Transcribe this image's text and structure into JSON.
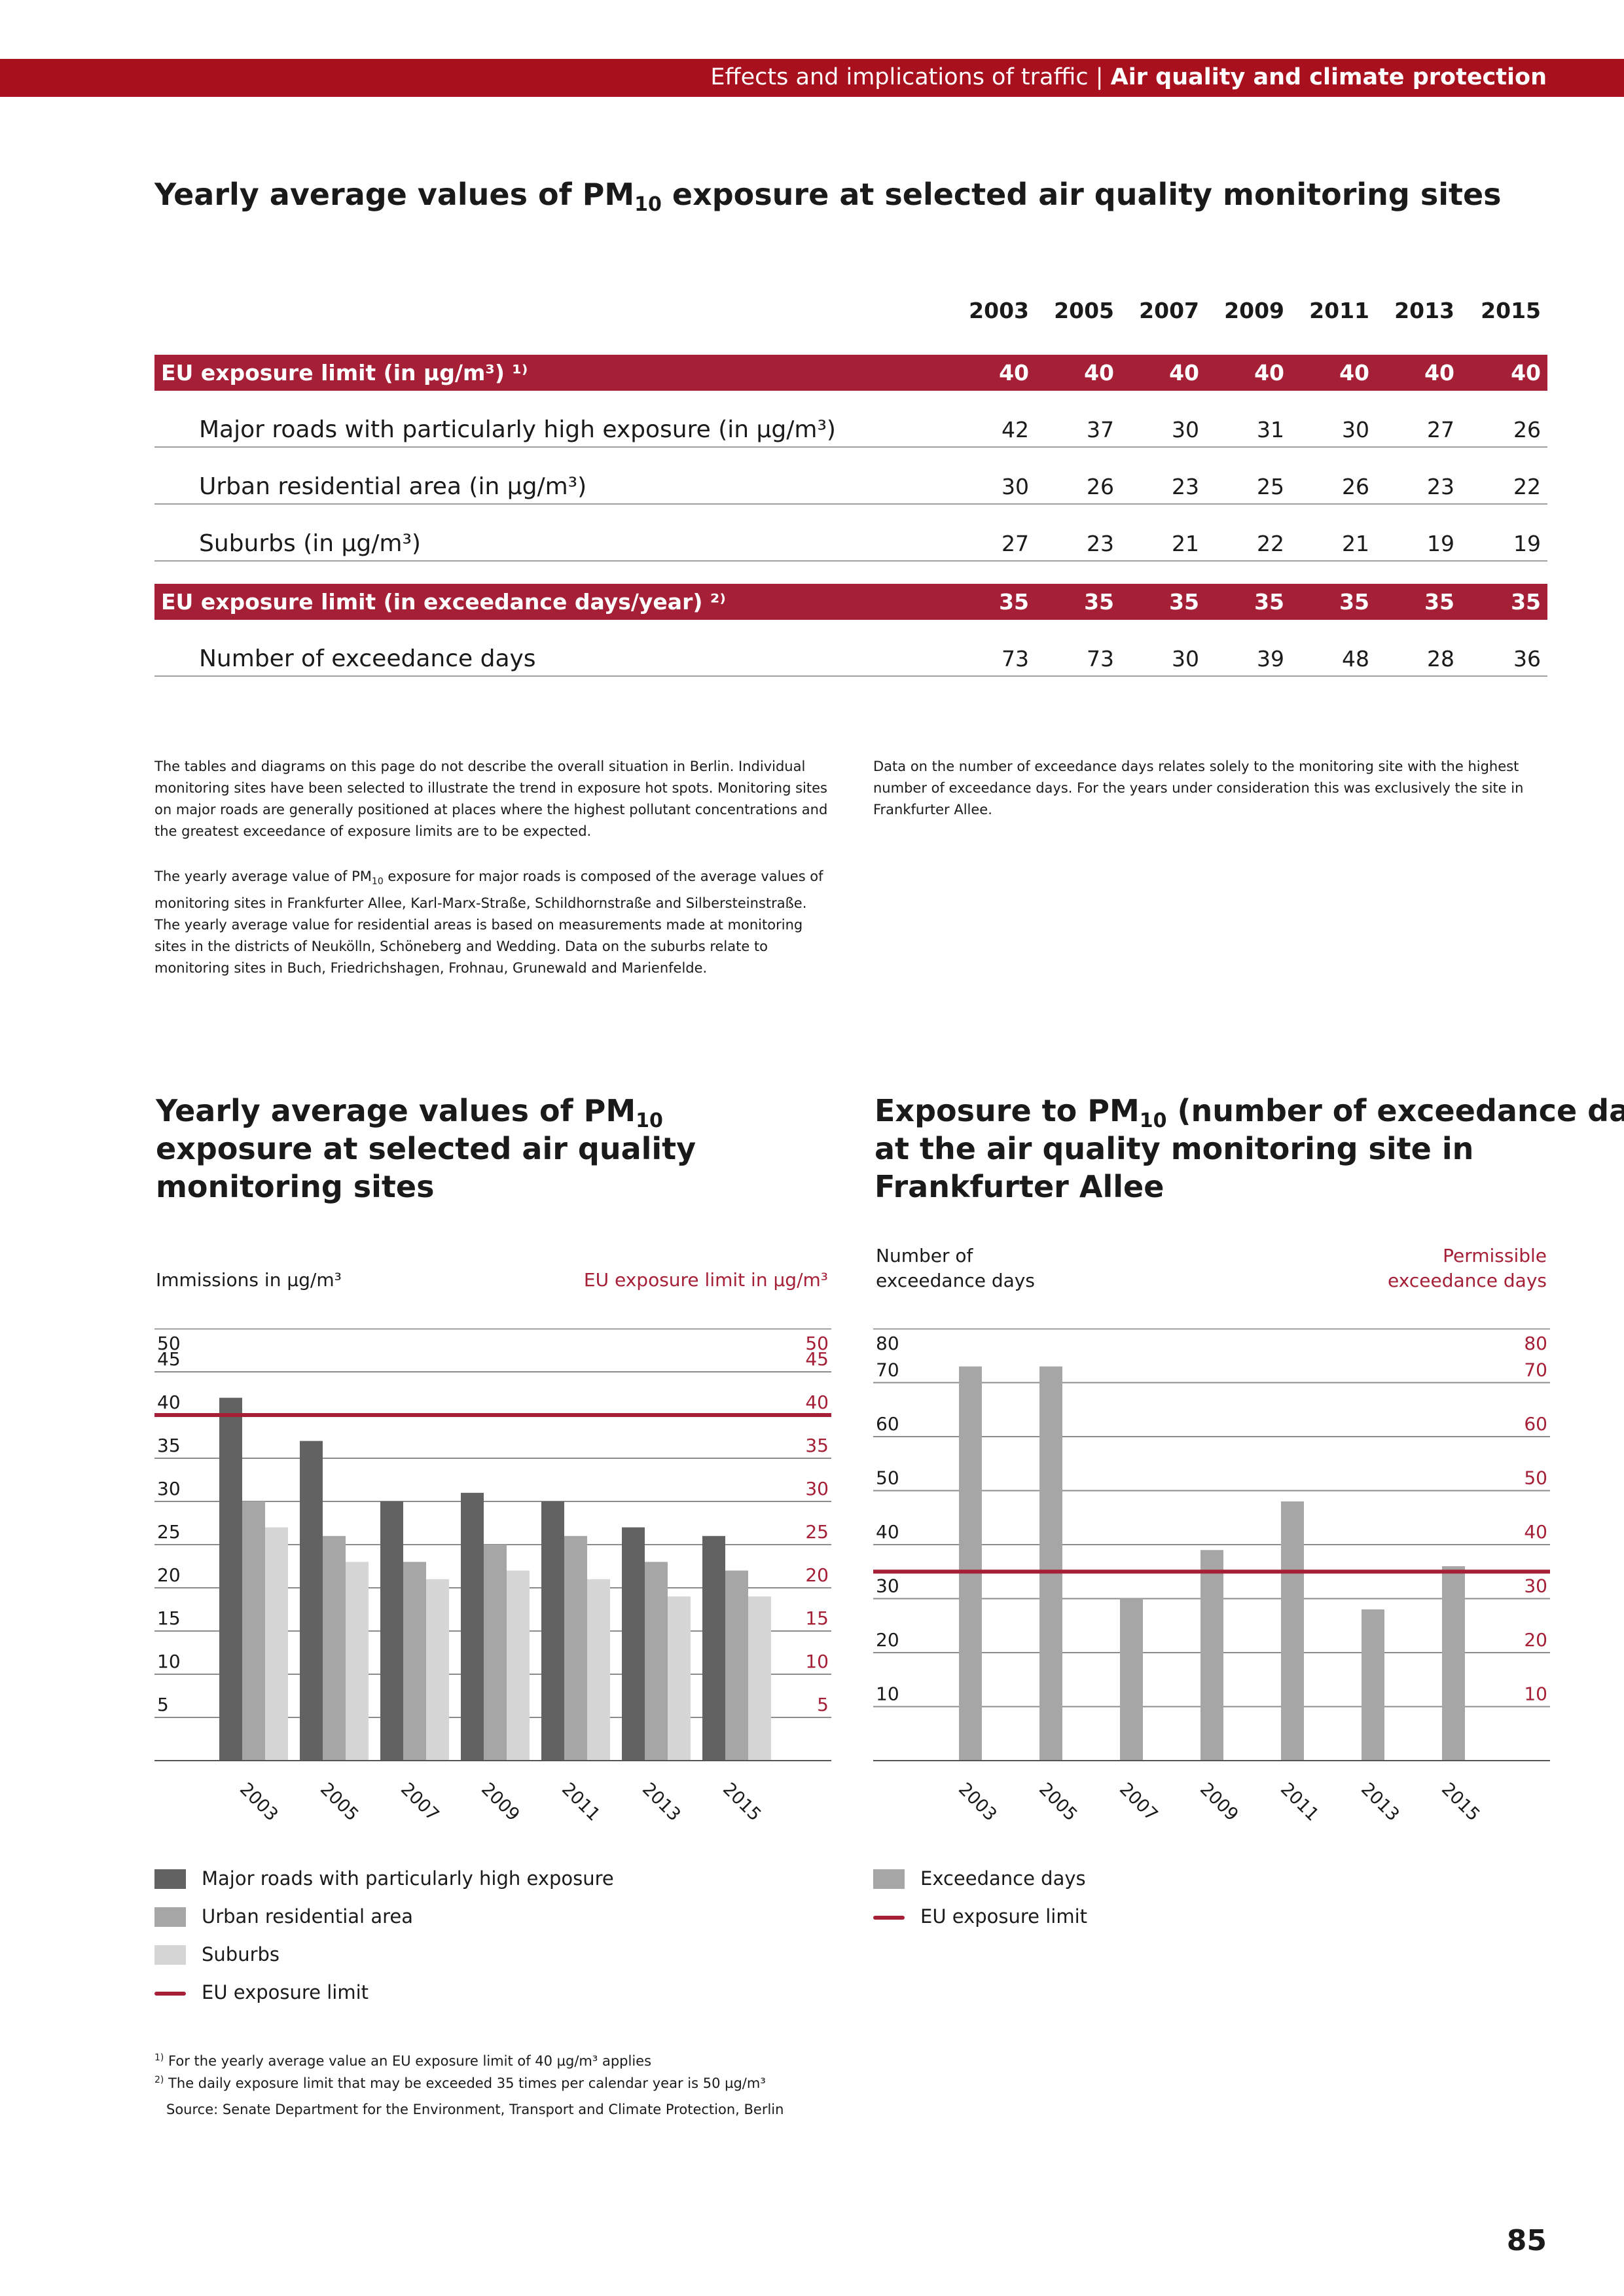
{
  "header": {
    "section": "Effects and implications of traffic",
    "separator": " | ",
    "chapter": "Air quality and climate protection"
  },
  "table_section": {
    "title_pre": "Yearly average values of PM",
    "title_sub": "10",
    "title_post": " exposure at selected air quality monitoring sites",
    "years": [
      "2003",
      "2005",
      "2007",
      "2009",
      "2011",
      "2013",
      "2015"
    ],
    "rows": [
      {
        "label": "EU exposure limit (in µg/m³) ¹⁾",
        "style": "red",
        "values": [
          "40",
          "40",
          "40",
          "40",
          "40",
          "40",
          "40"
        ]
      },
      {
        "label": "Major roads with particularly high exposure (in µg/m³)",
        "style": "sub",
        "values": [
          "42",
          "37",
          "30",
          "31",
          "30",
          "27",
          "26"
        ]
      },
      {
        "label": "Urban residential area (in µg/m³)",
        "style": "sub",
        "values": [
          "30",
          "26",
          "23",
          "25",
          "26",
          "23",
          "22"
        ]
      },
      {
        "label": "Suburbs (in µg/m³)",
        "style": "sub",
        "values": [
          "27",
          "23",
          "21",
          "22",
          "21",
          "19",
          "19"
        ]
      },
      {
        "label": "EU exposure limit (in exceedance days/year) ²⁾",
        "style": "red",
        "values": [
          "35",
          "35",
          "35",
          "35",
          "35",
          "35",
          "35"
        ]
      },
      {
        "label": "Number of exceedance days",
        "style": "sub",
        "values": [
          "73",
          "73",
          "30",
          "39",
          "48",
          "28",
          "36"
        ]
      }
    ]
  },
  "notes": {
    "left_1": "The tables and diagrams on this page do not describe the overall situation in Berlin. Individual monitoring sites have been selected to illustrate the trend in exposure hot spots. Monitoring sites on major roads are generally positioned at places where the highest pollutant concentrations and the greatest exceedance of exposure limits are to be expected.",
    "left_2_pre": "The yearly average value of PM",
    "left_2_sub": "10",
    "left_2_post": " exposure for major roads is composed of the average values of monitoring sites in Frankfurter Allee, Karl-Marx-Straße, Schildhornstraße and Silbersteinstraße. The yearly average value for residential areas is based on measurements made at monitoring sites in the districts of Neukölln, Schöneberg and Wedding. Data on the suburbs relate to monitoring sites in Buch, Friedrichshagen, Frohnau, Grunewald and Marienfelde.",
    "right_1": "Data on the number of exceedance days relates solely to the monitoring site with the highest number of exceedance days. For the years under consideration this was exclusively the site in Frankfurter Allee."
  },
  "chart_left_header": {
    "title_pre": "Yearly average values of PM",
    "title_sub": "10",
    "title_line1_post": "",
    "title_line2": "exposure at selected air quality",
    "title_line3": "monitoring sites",
    "left_axis_caption": "Immissions in µg/m³",
    "right_axis_caption": "EU exposure limit in µg/m³"
  },
  "chart_right_header": {
    "title_pre": "Exposure to PM",
    "title_sub": "10",
    "title_line1_post": " (number of exceedance days)",
    "title_line2": "at the air quality monitoring site in",
    "title_line3": "Frankfurter Allee",
    "left_axis_caption_1": "Number of",
    "left_axis_caption_2": "exceedance days",
    "right_axis_caption_1": "Permissible",
    "right_axis_caption_2": "exceedance days"
  },
  "chart_data": [
    {
      "type": "bar",
      "categories": [
        "2003",
        "2005",
        "2007",
        "2009",
        "2011",
        "2013",
        "2015"
      ],
      "series": [
        {
          "name": "Major roads with particularly high exposure",
          "color": "#626262",
          "values": [
            42,
            37,
            30,
            31,
            30,
            27,
            26
          ]
        },
        {
          "name": "Urban residential area",
          "color": "#a6a6a6",
          "values": [
            30,
            26,
            23,
            25,
            26,
            23,
            22
          ]
        },
        {
          "name": "Suburbs",
          "color": "#d6d6d6",
          "values": [
            27,
            23,
            21,
            22,
            21,
            19,
            19
          ]
        }
      ],
      "reference_line": {
        "name": "EU exposure limit",
        "value": 40,
        "color": "#a51f37"
      },
      "ylim": [
        0,
        50
      ],
      "ticks_left": [
        50,
        45,
        40,
        35,
        30,
        25,
        20,
        15,
        10,
        5
      ],
      "ticks_right": [
        50,
        45,
        40,
        35,
        30,
        25,
        20,
        15,
        10,
        5
      ],
      "grid": true
    },
    {
      "type": "bar",
      "categories": [
        "2003",
        "2005",
        "2007",
        "2009",
        "2011",
        "2013",
        "2015"
      ],
      "series": [
        {
          "name": "Exceedance days",
          "color": "#a6a6a6",
          "values": [
            73,
            73,
            30,
            39,
            48,
            28,
            36
          ]
        }
      ],
      "reference_line": {
        "name": "EU exposure limit",
        "value": 35,
        "color": "#a51f37"
      },
      "ylim": [
        0,
        80
      ],
      "ticks_left": [
        80,
        70,
        60,
        50,
        40,
        30,
        20,
        10
      ],
      "ticks_right": [
        80,
        70,
        60,
        50,
        40,
        30,
        20,
        10
      ],
      "grid": true
    }
  ],
  "legend_left": [
    {
      "label": "Major roads with particularly high exposure",
      "kind": "box",
      "color": "#626262"
    },
    {
      "label": "Urban residential area",
      "kind": "box",
      "color": "#a6a6a6"
    },
    {
      "label": "Suburbs",
      "kind": "box",
      "color": "#d6d6d6"
    },
    {
      "label": "EU exposure limit",
      "kind": "line",
      "color": "#a51f37"
    }
  ],
  "legend_right": [
    {
      "label": "Exceedance days",
      "kind": "box",
      "color": "#a6a6a6"
    },
    {
      "label": "EU exposure limit",
      "kind": "line",
      "color": "#a51f37"
    }
  ],
  "footnotes": {
    "fn1_mark": "1)",
    "fn1_text": " For the yearly average value an EU exposure limit of 40 µg/m³ applies",
    "fn2_mark": "2)",
    "fn2_text": " The daily exposure limit that may be exceeded 35 times per calendar year is 50 µg/m³",
    "source": "Source: Senate Department for the Environment, Transport and Climate Protection, Berlin"
  },
  "page_number": "85"
}
